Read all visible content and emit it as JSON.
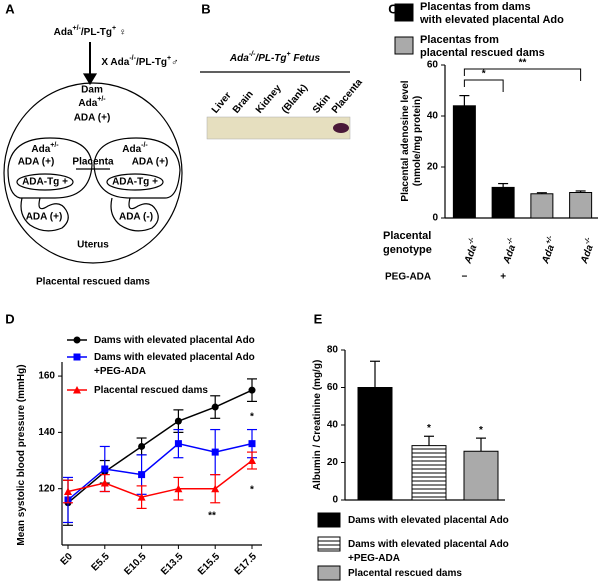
{
  "panel_a": {
    "label": "A",
    "female": [
      "Ada",
      "+/-",
      "/PL-Tg",
      "+",
      " ♀"
    ],
    "cross": [
      "X Ada",
      "-/-",
      "/PL-Tg",
      "+",
      "♂"
    ],
    "dam": "Dam",
    "dam_genotype": [
      "Ada",
      "+/-"
    ],
    "dam_ada": "ADA (+)",
    "left_genotype": [
      "Ada",
      "+/-"
    ],
    "right_genotype": [
      "Ada",
      "-/-"
    ],
    "left_ada": "ADA (+)",
    "placenta": "Placenta",
    "right_ada": "ADA (+)",
    "left_tg": "ADA-Tg +",
    "right_tg": "ADA-Tg +",
    "left_fetus": "ADA (+)",
    "right_fetus": "ADA (-)",
    "uterus": "Uterus",
    "caption": "Placental rescued dams"
  },
  "panel_b": {
    "label": "B",
    "heading": [
      "Ada",
      "-/-",
      "/PL-Tg",
      "+",
      " Fetus"
    ],
    "lanes": [
      "Liver",
      "Brain",
      "Kidney",
      "(Blank)",
      "Skin",
      "Placenta"
    ]
  },
  "chart_data": [
    {
      "label": "C",
      "type": "bar",
      "legend": [
        {
          "name": "Placentas from dams\nwith elevated placental Ado",
          "color": "#000000"
        },
        {
          "name": "Placentas from\nplacental rescued dams",
          "color": "#aaaaaa"
        }
      ],
      "ylabel": "Placental adenosine level\n(nmole/mg protein)",
      "category_title": "Placental\ngenotype",
      "categories": [
        [
          "Ada",
          "-/-"
        ],
        [
          "Ada",
          "-/-"
        ],
        [
          "Ada",
          "+/-"
        ],
        [
          "Ada",
          "-/-"
        ]
      ],
      "values": [
        44,
        12,
        9.5,
        10
      ],
      "errors": [
        4,
        1.5,
        0.4,
        0.6
      ],
      "colors": [
        "#000000",
        "#000000",
        "#aaaaaa",
        "#aaaaaa"
      ],
      "ylim": [
        0,
        60
      ],
      "yticks": [
        0,
        20,
        40,
        60
      ],
      "treatment_title": "PEG-ADA",
      "treatment": [
        "−",
        "+",
        null,
        null
      ],
      "annotations": [
        "*",
        "**"
      ]
    },
    {
      "label": "D",
      "type": "line",
      "ylabel": "Mean systolic blood pressure (mmHg)",
      "categories": [
        "E0",
        "E5.5",
        "E10.5",
        "E13.5",
        "E15.5",
        "E17.5"
      ],
      "ylim": [
        100,
        165
      ],
      "yticks": [
        120,
        140,
        160
      ],
      "series": [
        {
          "name": "Dams with elevated placental Ado",
          "color": "#000000",
          "marker": "circle",
          "values": [
            115,
            126,
            135,
            144,
            149,
            155
          ],
          "errors": [
            8,
            4,
            3,
            4,
            4,
            4
          ]
        },
        {
          "name": "Dams with elevated placental Ado\n+PEG-ADA",
          "color": "#0000ff",
          "marker": "square",
          "values": [
            116,
            127,
            125,
            136,
            133,
            136
          ],
          "errors": [
            8,
            8,
            7,
            5,
            8,
            5
          ]
        },
        {
          "name": "Placental rescued dams",
          "color": "#ff0000",
          "marker": "triangle",
          "values": [
            119,
            122,
            117,
            120,
            120,
            130
          ],
          "errors": [
            4,
            3,
            4,
            4,
            5,
            3
          ]
        }
      ],
      "annotations": [
        {
          "text": "*",
          "color": "#0000ff"
        },
        {
          "text": "*",
          "color": "#ff0000"
        },
        {
          "text": "**",
          "color": "#ff0000"
        }
      ]
    },
    {
      "label": "E",
      "type": "bar",
      "ylabel": "Albumin / Creatinine (mg/g)",
      "ylim": [
        0,
        80
      ],
      "yticks": [
        0,
        20,
        40,
        60,
        80
      ],
      "series": [
        {
          "name": "Dams with elevated placental Ado",
          "color": "#000000",
          "values": [
            60
          ],
          "errors": [
            14
          ]
        },
        {
          "name": "Dams with elevated placental Ado\n+PEG-ADA",
          "color": "#ffffff",
          "hatch": true,
          "values": [
            29
          ],
          "errors": [
            5
          ]
        },
        {
          "name": "Placental rescued dams",
          "color": "#aaaaaa",
          "values": [
            26
          ],
          "errors": [
            7
          ]
        }
      ],
      "annotations": [
        "*",
        "*"
      ]
    }
  ]
}
